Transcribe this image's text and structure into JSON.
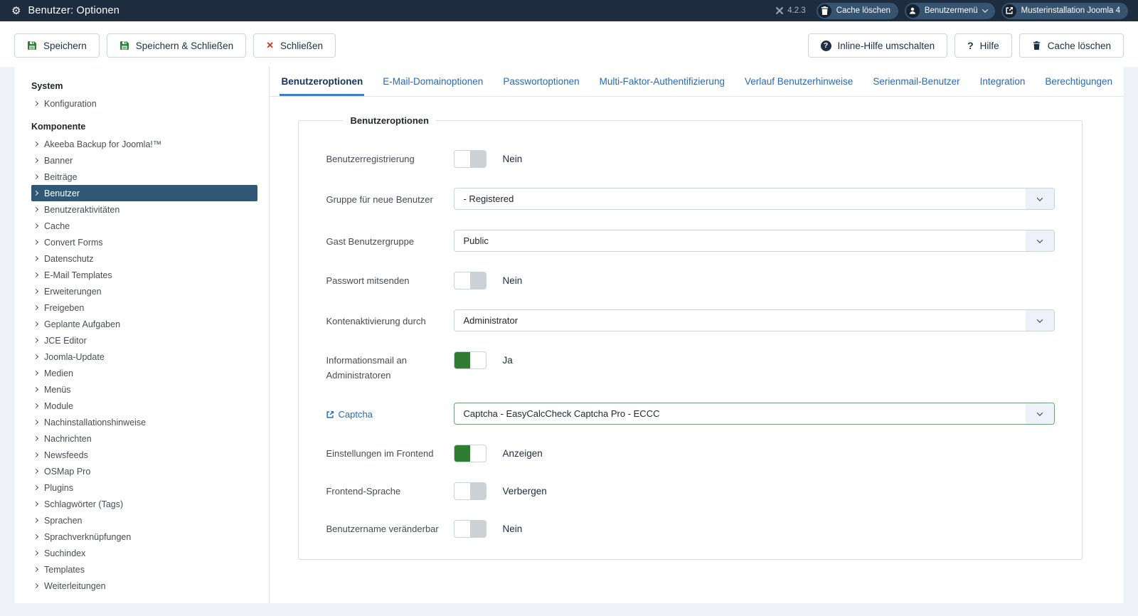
{
  "header": {
    "title": "Benutzer: Optionen",
    "title_icon": "gear-icon",
    "version": "4.2.3",
    "version_icon": "joomla-logo-icon",
    "pills": [
      {
        "label": "Cache löschen",
        "icon": "trash-icon"
      },
      {
        "label": "Benutzermenü",
        "icon": "user-icon",
        "chevron": "chevron-down-icon"
      },
      {
        "label": "Musterinstallation Joomla 4",
        "icon": "external-link-icon"
      }
    ]
  },
  "toolbar": {
    "left": [
      {
        "label": "Speichern",
        "icon": "save-icon"
      },
      {
        "label": "Speichern & Schließen",
        "icon": "save-icon"
      },
      {
        "label": "Schließen",
        "icon": "close-icon"
      }
    ],
    "right": [
      {
        "label": "Inline-Hilfe umschalten",
        "icon": "question-circle-icon"
      },
      {
        "label": "Hilfe",
        "icon": "question-icon"
      },
      {
        "label": "Cache löschen",
        "icon": "trash-icon"
      }
    ]
  },
  "sidebar": {
    "sections": [
      {
        "heading": "System",
        "items": [
          {
            "label": "Konfiguration"
          }
        ]
      },
      {
        "heading": "Komponente",
        "items": [
          {
            "label": "Akeeba Backup for Joomla!™"
          },
          {
            "label": "Banner"
          },
          {
            "label": "Beiträge"
          },
          {
            "label": "Benutzer",
            "selected": true
          },
          {
            "label": "Benutzeraktivitäten"
          },
          {
            "label": "Cache"
          },
          {
            "label": "Convert Forms"
          },
          {
            "label": "Datenschutz"
          },
          {
            "label": "E-Mail Templates"
          },
          {
            "label": "Erweiterungen"
          },
          {
            "label": "Freigeben"
          },
          {
            "label": "Geplante Aufgaben"
          },
          {
            "label": "JCE Editor"
          },
          {
            "label": "Joomla-Update"
          },
          {
            "label": "Medien"
          },
          {
            "label": "Menüs"
          },
          {
            "label": "Module"
          },
          {
            "label": "Nachinstallationshinweise"
          },
          {
            "label": "Nachrichten"
          },
          {
            "label": "Newsfeeds"
          },
          {
            "label": "OSMap Pro"
          },
          {
            "label": "Plugins"
          },
          {
            "label": "Schlagwörter (Tags)"
          },
          {
            "label": "Sprachen"
          },
          {
            "label": "Sprachverknüpfungen"
          },
          {
            "label": "Suchindex"
          },
          {
            "label": "Templates"
          },
          {
            "label": "Weiterleitungen"
          }
        ]
      }
    ]
  },
  "tabs": [
    {
      "label": "Benutzeroptionen",
      "active": true
    },
    {
      "label": "E-Mail-Domainoptionen"
    },
    {
      "label": "Passwortoptionen"
    },
    {
      "label": "Multi-Faktor-Authentifizierung"
    },
    {
      "label": "Verlauf Benutzerhinweise"
    },
    {
      "label": "Serienmail-Benutzer"
    },
    {
      "label": "Integration"
    },
    {
      "label": "Berechtigungen"
    }
  ],
  "panel": {
    "legend": "Benutzeroptionen",
    "fields": [
      {
        "label": "Benutzerregistrierung",
        "type": "toggle",
        "state": "off",
        "value": "Nein"
      },
      {
        "label": "Gruppe für neue Benutzer",
        "type": "select",
        "value": "- Registered"
      },
      {
        "label": "Gast Benutzergruppe",
        "type": "select",
        "value": "Public"
      },
      {
        "label": "Passwort mitsenden",
        "type": "toggle",
        "state": "off",
        "value": "Nein"
      },
      {
        "label": "Kontenaktivierung durch",
        "type": "select",
        "value": "Administrator"
      },
      {
        "label": "Informationsmail an Administratoren",
        "type": "toggle",
        "state": "on",
        "value": "Ja"
      },
      {
        "label": "Captcha",
        "type": "select",
        "value": "Captcha - EasyCalcCheck Captcha Pro - ECCC",
        "link": true,
        "link_icon": "external-link-icon",
        "highlight": true
      },
      {
        "label": "Einstellungen im Frontend",
        "type": "toggle",
        "state": "on",
        "value": "Anzeigen"
      },
      {
        "label": "Frontend-Sprache",
        "type": "toggle",
        "state": "off",
        "value": "Verbergen"
      },
      {
        "label": "Benutzername veränderbar",
        "type": "toggle",
        "state": "off",
        "value": "Nein"
      }
    ]
  },
  "colors": {
    "header_bg": "#1d2c3f",
    "pill_bg": "#36536f",
    "sidebar_selected_bg": "#315977",
    "link_blue": "#2a69b8",
    "tab_underline": "#3d7fc6",
    "toggle_on_green": "#2e7d32",
    "toggle_off_gray": "#ccd1d6",
    "select_caret_bg": "#edf2fa",
    "highlight_border_green": "#6f9e77",
    "danger_red": "#c5392f"
  }
}
